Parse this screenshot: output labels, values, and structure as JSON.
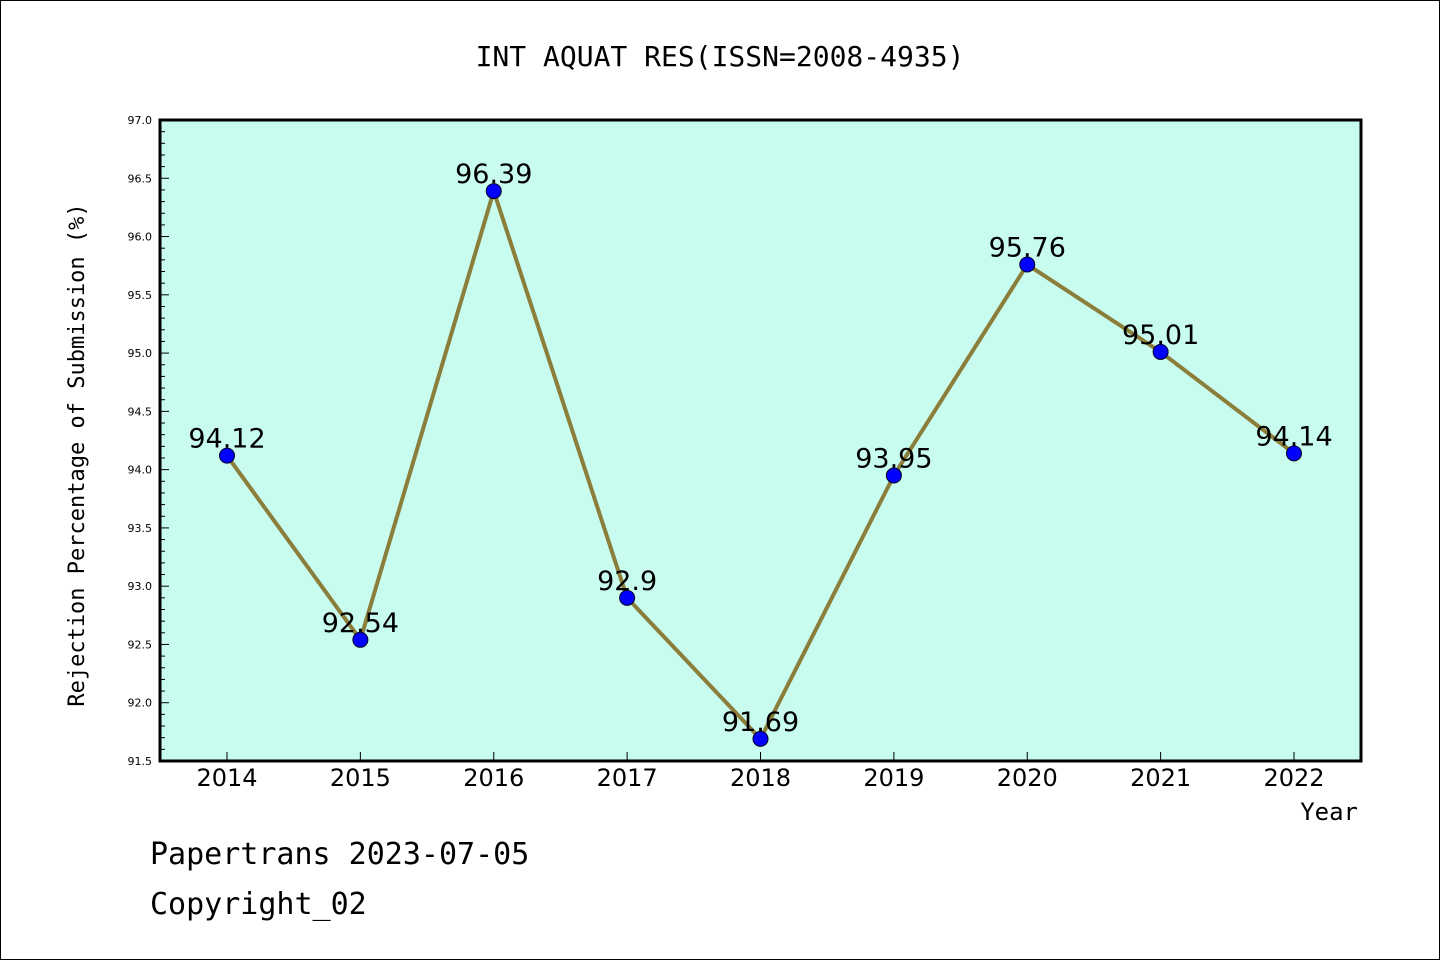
{
  "chart_data": {
    "type": "line",
    "title": "INT AQUAT RES(ISSN=2008-4935)",
    "xlabel": "Year",
    "ylabel": "Rejection Percentage of Submission (%)",
    "categories": [
      "2014",
      "2015",
      "2016",
      "2017",
      "2018",
      "2019",
      "2020",
      "2021",
      "2022"
    ],
    "values": [
      94.12,
      92.54,
      96.39,
      92.9,
      91.69,
      93.95,
      95.76,
      95.01,
      94.14
    ],
    "data_labels": [
      "94.12",
      "92.54",
      "96.39",
      "92.9",
      "91.69",
      "93.95",
      "95.76",
      "95.01",
      "94.14"
    ],
    "ylim": [
      91.5,
      97.0
    ],
    "yticks": [
      "91.5",
      "92.0",
      "92.5",
      "93.0",
      "93.5",
      "94.0",
      "94.5",
      "95.0",
      "95.5",
      "96.0",
      "96.5",
      "97.0"
    ],
    "grid": false,
    "colors": {
      "plot_background": "#c8fcee",
      "line": "#8b7d3a",
      "marker": "#0000ff"
    }
  },
  "footer": {
    "line1": "Papertrans 2023-07-05",
    "line2": "Copyright_02"
  }
}
